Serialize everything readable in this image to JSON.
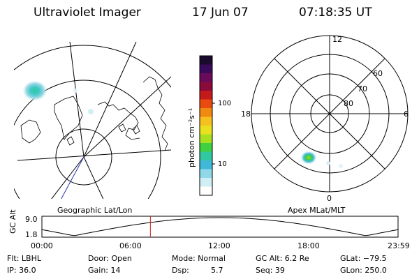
{
  "header": {
    "instrument": "Ultraviolet Imager",
    "date": "17 Jun 07",
    "time": "07:18:35 UT"
  },
  "left_panel": {
    "label": "Geographic Lat/Lon",
    "icon": "coastline-map-icon"
  },
  "colorbar": {
    "unit_label": "photon cm⁻²s⁻¹",
    "ticks": [
      "100",
      "10"
    ],
    "colors": [
      "#1a0a2e",
      "#3a0a5a",
      "#6a0a5a",
      "#8a0a3a",
      "#c41a1a",
      "#e84a10",
      "#f08a10",
      "#f6c020",
      "#e8e020",
      "#a8e020",
      "#40d040",
      "#30c8a0",
      "#40b8d8",
      "#90d8e8",
      "#d0eef4",
      "#ffffff"
    ]
  },
  "right_panel": {
    "label": "Apex MLat/MLT",
    "mlt_labels": {
      "top": "12",
      "left": "18",
      "right": "6",
      "bottom": "0"
    },
    "lat_labels": [
      "60",
      "70",
      "80"
    ]
  },
  "altitude_plot": {
    "ylabel": "GC Alt",
    "yticks": [
      "9.0",
      "1.8"
    ],
    "xticks": [
      "00:00",
      "06:00",
      "12:00",
      "18:00",
      "23:59"
    ],
    "current_time_hours": 7.31,
    "marker_color": "#cc2222"
  },
  "info": {
    "row1": {
      "flt": "Flt: LBHL",
      "door": "Door: Open",
      "mode": "Mode: Normal",
      "gc_alt": "GC Alt: 6.2 Re",
      "glat": "GLat: −79.5"
    },
    "row2": {
      "ip": "IP: 36.0",
      "gain": "Gain: 14",
      "dsp_label": "Dsp:",
      "dsp_value": "5.7",
      "seq": "Seq: 39",
      "glon": "GLon: 250.0"
    }
  }
}
